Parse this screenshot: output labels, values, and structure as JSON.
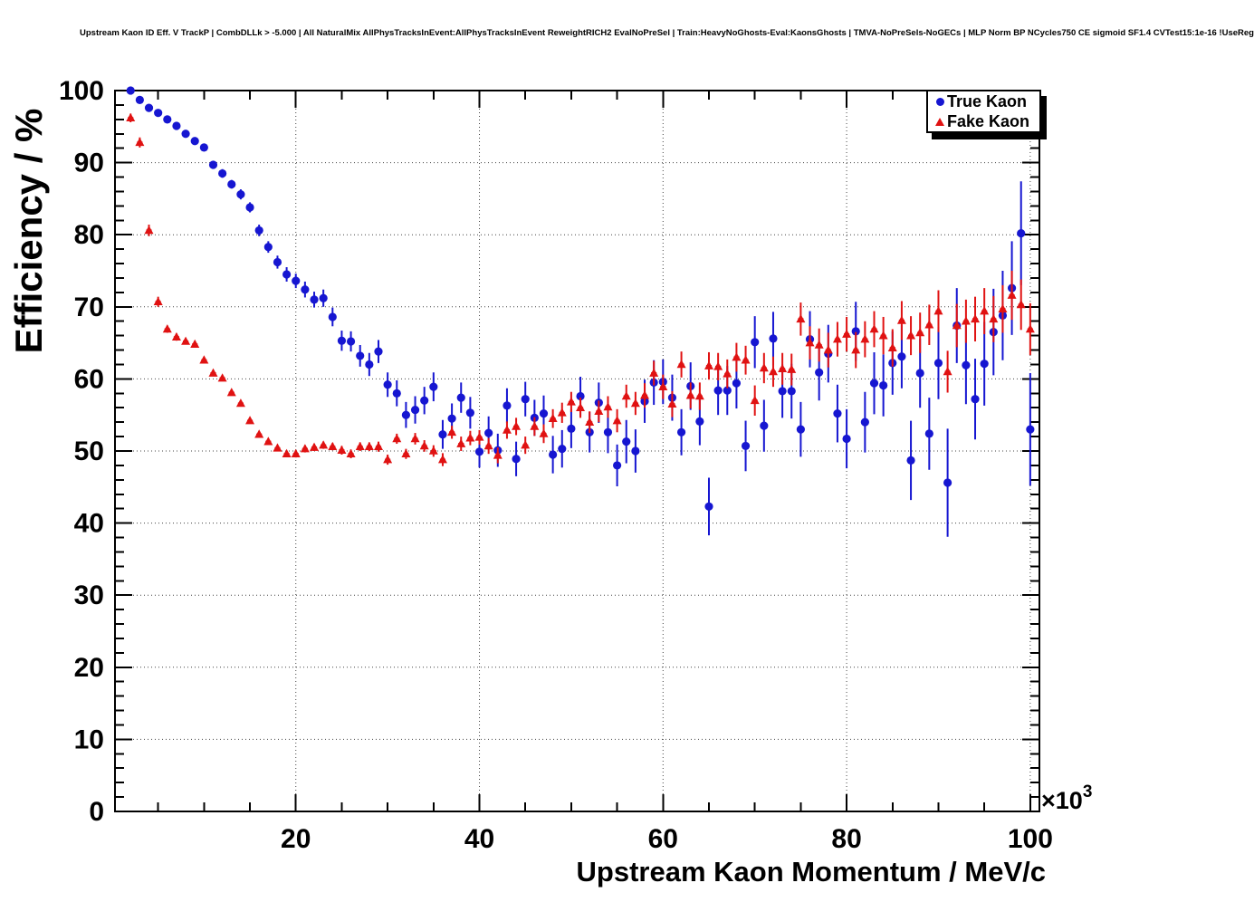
{
  "header": {
    "title": "Upstream Kaon ID Eff. V TrackP | CombDLLk > -5.000 | All NaturalMix AllPhysTracksInEvent:AllPhysTracksInEvent ReweightRICH2 EvalNoPreSel | Train:HeavyNoGhosts-Eval:KaonsGhosts | TMVA-NoPreSels-NoGECs | MLP Norm BP NCycles750 CE sigmoid SF1.4 CVTest15:1e-16 !UseReg"
  },
  "plot": {
    "y_axis": {
      "title": "Efficiency / %",
      "tick_values": [
        0,
        10,
        20,
        30,
        40,
        50,
        60,
        70,
        80,
        90,
        100
      ],
      "range": [
        0,
        100
      ],
      "minor_step": 2
    },
    "x_axis": {
      "title": "Upstream Kaon Momentum / MeV/c",
      "tick_values": [
        20,
        40,
        60,
        80,
        100
      ],
      "range": [
        0.3,
        101
      ],
      "minor_step": 5,
      "multiplier_base": "×10",
      "multiplier_exp": "3"
    },
    "legend": {
      "entries": [
        {
          "label": "True Kaon",
          "marker": "circle",
          "color": "#1616d1"
        },
        {
          "label": "Fake Kaon",
          "marker": "triangle",
          "color": "#e01212"
        }
      ]
    },
    "frame_color": "#000000",
    "grid_style": "dotted"
  },
  "chart_data": {
    "type": "scatter",
    "title": "Upstream Kaon ID Eff. V TrackP | CombDLLk > -5.000 | All NaturalMix AllPhysTracksInEvent:AllPhysTracksInEvent ReweightRICH2 EvalNoPreSel | Train:HeavyNoGhosts-Eval:KaonsGhosts | TMVA-NoPreSels-NoGECs | MLP Norm BP NCycles750 CE sigmoid SF1.4 CVTest15:1e-16 !UseReg",
    "xlabel": "Upstream Kaon Momentum / MeV/c",
    "ylabel": "Efficiency / %",
    "x_units": "10^3 MeV/c",
    "xlim": [
      0.3,
      101
    ],
    "ylim": [
      0,
      100
    ],
    "grid": "dotted at major ticks",
    "legend_position": "top-right",
    "point_format": "[x (10^3 MeV/c), efficiency (%), efficiency_error (%)]",
    "series": [
      {
        "name": "True Kaon",
        "marker": "circle",
        "color": "#1616d1",
        "points": [
          [
            2,
            100,
            0.2
          ],
          [
            3,
            98.7,
            0.3
          ],
          [
            4,
            97.6,
            0.3
          ],
          [
            5,
            96.9,
            0.3
          ],
          [
            6,
            96,
            0.3
          ],
          [
            7,
            95.1,
            0.4
          ],
          [
            8,
            94,
            0.4
          ],
          [
            9,
            93,
            0.4
          ],
          [
            10,
            92.1,
            0.5
          ],
          [
            11,
            89.7,
            0.5
          ],
          [
            12,
            88.5,
            0.6
          ],
          [
            13,
            87,
            0.6
          ],
          [
            14,
            85.6,
            0.7
          ],
          [
            15,
            83.8,
            0.7
          ],
          [
            16,
            80.6,
            0.8
          ],
          [
            17,
            78.3,
            0.8
          ],
          [
            18,
            76.2,
            0.9
          ],
          [
            19,
            74.5,
            1
          ],
          [
            20,
            73.6,
            1
          ],
          [
            21,
            72.4,
            1.1
          ],
          [
            22,
            71,
            1.1
          ],
          [
            23,
            71.2,
            1.2
          ],
          [
            24,
            68.6,
            1.3
          ],
          [
            25,
            65.3,
            1.4
          ],
          [
            26,
            65.2,
            1.4
          ],
          [
            27,
            63.2,
            1.5
          ],
          [
            28,
            62,
            1.6
          ],
          [
            29,
            63.8,
            1.6
          ],
          [
            30,
            59.2,
            1.7
          ],
          [
            31,
            58,
            1.8
          ],
          [
            32,
            55,
            1.8
          ],
          [
            33,
            55.7,
            1.9
          ],
          [
            34,
            57,
            1.9
          ],
          [
            35,
            58.9,
            2
          ],
          [
            36,
            52.3,
            2
          ],
          [
            37,
            54.5,
            2.1
          ],
          [
            38,
            57.4,
            2.1
          ],
          [
            39,
            55.3,
            2.2
          ],
          [
            40,
            49.9,
            2.2
          ],
          [
            41,
            52.5,
            2.3
          ],
          [
            42,
            50.1,
            2.3
          ],
          [
            43,
            56.3,
            2.4
          ],
          [
            44,
            48.9,
            2.4
          ],
          [
            45,
            57.2,
            2.4
          ],
          [
            46,
            54.6,
            2.5
          ],
          [
            47,
            55.2,
            2.5
          ],
          [
            48,
            49.5,
            2.6
          ],
          [
            49,
            50.3,
            2.6
          ],
          [
            50,
            53.1,
            2.7
          ],
          [
            51,
            57.6,
            2.7
          ],
          [
            52,
            52.6,
            2.8
          ],
          [
            53,
            56.7,
            2.8
          ],
          [
            54,
            52.6,
            2.9
          ],
          [
            55,
            48,
            2.9
          ],
          [
            56,
            51.3,
            3
          ],
          [
            57,
            50,
            3
          ],
          [
            58,
            56.9,
            3
          ],
          [
            59,
            59.5,
            3.1
          ],
          [
            60,
            59.6,
            3.1
          ],
          [
            61,
            57.4,
            3.2
          ],
          [
            62,
            52.6,
            3.2
          ],
          [
            63,
            59,
            3.3
          ],
          [
            64,
            54.1,
            3.3
          ],
          [
            65,
            42.3,
            4
          ],
          [
            66,
            58.4,
            3.4
          ],
          [
            67,
            58.4,
            3.4
          ],
          [
            68,
            59.4,
            3.5
          ],
          [
            69,
            50.7,
            3.5
          ],
          [
            70,
            65.1,
            3.6
          ],
          [
            71,
            53.5,
            3.6
          ],
          [
            72,
            65.6,
            3.7
          ],
          [
            73,
            58.3,
            3.7
          ],
          [
            74,
            58.3,
            3.8
          ],
          [
            75,
            53,
            3.8
          ],
          [
            76,
            65.5,
            3.9
          ],
          [
            77,
            60.9,
            3.9
          ],
          [
            78,
            63.5,
            4
          ],
          [
            79,
            55.2,
            4
          ],
          [
            80,
            51.7,
            4.1
          ],
          [
            81,
            66.6,
            4.1
          ],
          [
            82,
            54,
            4.2
          ],
          [
            83,
            59.4,
            4.3
          ],
          [
            84,
            59.1,
            4.3
          ],
          [
            85,
            62.2,
            4.4
          ],
          [
            86,
            63.1,
            4.4
          ],
          [
            87,
            48.7,
            5.5
          ],
          [
            88,
            60.8,
            4.8
          ],
          [
            89,
            52.4,
            5
          ],
          [
            90,
            62.2,
            5
          ],
          [
            91,
            45.6,
            7.5
          ],
          [
            92,
            67.4,
            5.2
          ],
          [
            93,
            61.9,
            5.4
          ],
          [
            94,
            57.2,
            5.6
          ],
          [
            95,
            62.1,
            5.8
          ],
          [
            96,
            66.5,
            6
          ],
          [
            97,
            68.8,
            6.2
          ],
          [
            98,
            72.6,
            6.5
          ],
          [
            99,
            80.2,
            7.2
          ],
          [
            100,
            53,
            7.8
          ]
        ]
      },
      {
        "name": "Fake Kaon",
        "marker": "triangle",
        "color": "#e01212",
        "points": [
          [
            2,
            96.2,
            0.6
          ],
          [
            3,
            92.8,
            0.7
          ],
          [
            4,
            80.6,
            0.8
          ],
          [
            5,
            70.7,
            0.7
          ],
          [
            6,
            66.9,
            0.5
          ],
          [
            7,
            65.8,
            0.5
          ],
          [
            8,
            65.2,
            0.4
          ],
          [
            9,
            64.8,
            0.4
          ],
          [
            10,
            62.6,
            0.4
          ],
          [
            11,
            60.8,
            0.4
          ],
          [
            12,
            60.1,
            0.4
          ],
          [
            13,
            58.1,
            0.4
          ],
          [
            14,
            56.6,
            0.4
          ],
          [
            15,
            54.2,
            0.4
          ],
          [
            16,
            52.3,
            0.4
          ],
          [
            17,
            51.3,
            0.4
          ],
          [
            18,
            50.4,
            0.4
          ],
          [
            19,
            49.6,
            0.4
          ],
          [
            20,
            49.6,
            0.5
          ],
          [
            21,
            50.3,
            0.5
          ],
          [
            22,
            50.5,
            0.5
          ],
          [
            23,
            50.8,
            0.5
          ],
          [
            24,
            50.6,
            0.5
          ],
          [
            25,
            50.1,
            0.6
          ],
          [
            26,
            49.6,
            0.6
          ],
          [
            27,
            50.6,
            0.6
          ],
          [
            28,
            50.6,
            0.6
          ],
          [
            29,
            50.6,
            0.7
          ],
          [
            30,
            48.8,
            0.7
          ],
          [
            31,
            51.7,
            0.7
          ],
          [
            32,
            49.6,
            0.7
          ],
          [
            33,
            51.7,
            0.8
          ],
          [
            34,
            50.7,
            0.8
          ],
          [
            35,
            50,
            0.8
          ],
          [
            36,
            48.8,
            0.9
          ],
          [
            37,
            52.6,
            0.9
          ],
          [
            38,
            51,
            1
          ],
          [
            39,
            51.8,
            1
          ],
          [
            40,
            51.9,
            1
          ],
          [
            41,
            50.7,
            1.1
          ],
          [
            42,
            49.4,
            1.1
          ],
          [
            43,
            52.9,
            1.2
          ],
          [
            44,
            53.4,
            1.2
          ],
          [
            45,
            50.8,
            1.2
          ],
          [
            46,
            53.4,
            1.3
          ],
          [
            47,
            52.4,
            1.3
          ],
          [
            48,
            54.5,
            1.3
          ],
          [
            49,
            55.3,
            1.4
          ],
          [
            50,
            56.8,
            1.4
          ],
          [
            51,
            56,
            1.4
          ],
          [
            52,
            54,
            1.5
          ],
          [
            53,
            55.5,
            1.5
          ],
          [
            54,
            56.1,
            1.5
          ],
          [
            55,
            54.2,
            1.6
          ],
          [
            56,
            57.6,
            1.6
          ],
          [
            57,
            56.6,
            1.6
          ],
          [
            58,
            57.7,
            1.7
          ],
          [
            59,
            60.8,
            1.7
          ],
          [
            60,
            58.9,
            1.7
          ],
          [
            61,
            56.5,
            1.8
          ],
          [
            62,
            62,
            1.8
          ],
          [
            63,
            57.7,
            1.8
          ],
          [
            64,
            57.6,
            1.9
          ],
          [
            65,
            61.8,
            1.9
          ],
          [
            66,
            61.7,
            1.9
          ],
          [
            67,
            60.7,
            2
          ],
          [
            68,
            63,
            2
          ],
          [
            69,
            62.6,
            2
          ],
          [
            70,
            57,
            2.1
          ],
          [
            71,
            61.5,
            2.1
          ],
          [
            72,
            61,
            2.1
          ],
          [
            73,
            61.4,
            2.2
          ],
          [
            74,
            61.3,
            2.2
          ],
          [
            75,
            68.3,
            2.3
          ],
          [
            76,
            65,
            2.3
          ],
          [
            77,
            64.7,
            2.3
          ],
          [
            78,
            64,
            2.4
          ],
          [
            79,
            65.5,
            2.4
          ],
          [
            80,
            66.2,
            2.4
          ],
          [
            81,
            64,
            2.5
          ],
          [
            82,
            65.5,
            2.5
          ],
          [
            83,
            66.9,
            2.5
          ],
          [
            84,
            66,
            2.6
          ],
          [
            85,
            64.3,
            2.6
          ],
          [
            86,
            68.1,
            2.7
          ],
          [
            87,
            66,
            2.7
          ],
          [
            88,
            66.4,
            2.8
          ],
          [
            89,
            67.5,
            2.8
          ],
          [
            90,
            69.4,
            2.9
          ],
          [
            91,
            61,
            2.9
          ],
          [
            92,
            67.4,
            3
          ],
          [
            93,
            68,
            3
          ],
          [
            94,
            68.3,
            3.1
          ],
          [
            95,
            69.4,
            3.2
          ],
          [
            96,
            68.3,
            3.2
          ],
          [
            97,
            69.7,
            3.3
          ],
          [
            98,
            71.6,
            3.4
          ],
          [
            99,
            70.3,
            3.5
          ],
          [
            100,
            66.9,
            3.6
          ]
        ]
      }
    ]
  }
}
